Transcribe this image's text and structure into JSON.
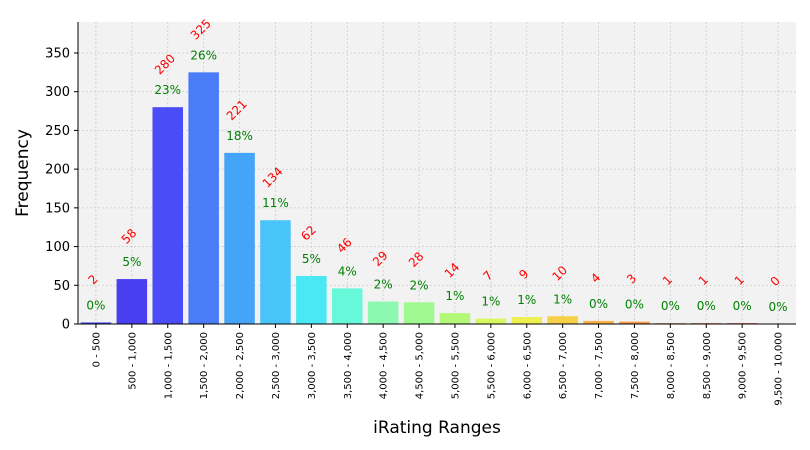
{
  "chart_data": {
    "type": "bar",
    "title": "",
    "xlabel": "iRating Ranges",
    "ylabel": "Frequency",
    "ylim": [
      0,
      390
    ],
    "yticks": [
      0,
      50,
      100,
      150,
      200,
      250,
      300,
      350
    ],
    "grid": true,
    "categories": [
      "0 - 500",
      "500 - 1,000",
      "1,000 - 1,500",
      "1,500 - 2,000",
      "2,000 - 2,500",
      "2,500 - 3,000",
      "3,000 - 3,500",
      "3,500 - 4,000",
      "4,000 - 4,500",
      "4,500 - 5,000",
      "5,000 - 5,500",
      "5,500 - 6,000",
      "6,000 - 6,500",
      "6,500 - 7,000",
      "7,000 - 7,500",
      "7,500 - 8,000",
      "8,000 - 8,500",
      "8,500 - 9,000",
      "9,000 - 9,500",
      "9,500 - 10,000"
    ],
    "values": [
      2,
      58,
      280,
      325,
      221,
      134,
      62,
      46,
      29,
      28,
      14,
      7,
      9,
      10,
      4,
      3,
      1,
      1,
      1,
      0
    ],
    "count_labels": [
      "2",
      "58",
      "280",
      "325",
      "221",
      "134",
      "62",
      "46",
      "29",
      "28",
      "14",
      "7",
      "9",
      "10",
      "4",
      "3",
      "1",
      "1",
      "1",
      "0"
    ],
    "percent_labels": [
      "0%",
      "5%",
      "23%",
      "26%",
      "18%",
      "11%",
      "5%",
      "4%",
      "2%",
      "2%",
      "1%",
      "1%",
      "1%",
      "1%",
      "0%",
      "0%",
      "0%",
      "0%",
      "0%",
      "0%"
    ],
    "bar_colors": [
      "#3f3fe8",
      "#4a3ff0",
      "#4a4cf8",
      "#4a7cf8",
      "#44a4f8",
      "#48c4f8",
      "#4ae8f4",
      "#66f8d8",
      "#8cf8b0",
      "#a0f890",
      "#b4f878",
      "#d8f860",
      "#eef050",
      "#f8d048",
      "#f8b048",
      "#f89848",
      "#f87a40",
      "#f85a40",
      "#f04040",
      "#e83838"
    ],
    "colors": {
      "count_label": "#ff0000",
      "percent_label": "#008000",
      "plot_background": "#f2f2f2",
      "grid": "#cccccc"
    }
  }
}
